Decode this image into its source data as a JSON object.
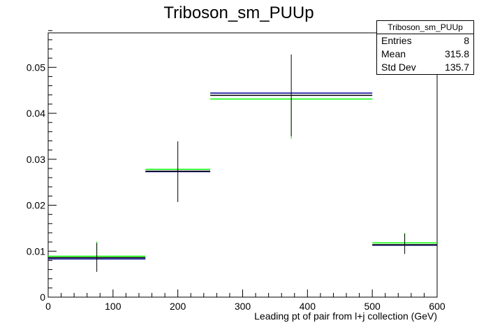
{
  "chart_data": {
    "type": "histogram",
    "title": "Triboson_sm_PUUp",
    "xlabel": "Leading pt of pair from l+j collection (GeV)",
    "ylabel": "",
    "xlim": [
      0,
      600
    ],
    "ylim": [
      0,
      0.0575
    ],
    "x_ticks": [
      0,
      100,
      200,
      300,
      400,
      500,
      600
    ],
    "x_tick_labels": [
      "0",
      "100",
      "200",
      "300",
      "400",
      "500",
      "600"
    ],
    "y_ticks": [
      0,
      0.01,
      0.02,
      0.03,
      0.04,
      0.05
    ],
    "y_tick_labels": [
      "0",
      "0.01",
      "0.02",
      "0.03",
      "0.04",
      "0.05"
    ],
    "grid": false,
    "bins": [
      {
        "low": 0,
        "high": 150
      },
      {
        "low": 150,
        "high": 250
      },
      {
        "low": 250,
        "high": 500
      },
      {
        "low": 500,
        "high": 600
      }
    ],
    "series": [
      {
        "color": "#00ff00",
        "values": [
          0.0089,
          0.0278,
          0.0431,
          0.0118
        ]
      },
      {
        "color": "#000099",
        "values": [
          0.0083,
          0.0273,
          0.0444,
          0.0113
        ]
      },
      {
        "color": "#000000",
        "values": [
          0.0086,
          0.0274,
          0.0439,
          0.0114
        ],
        "error_points": [
          {
            "x": 75,
            "low": 0.0055,
            "high": 0.0118
          },
          {
            "x": 200,
            "low": 0.0207,
            "high": 0.0339
          },
          {
            "x": 375,
            "low": 0.035,
            "high": 0.0528
          },
          {
            "x": 550,
            "low": 0.0094,
            "high": 0.0138
          }
        ]
      }
    ],
    "green_error_points": [
      {
        "x": 75,
        "low": 0.0085,
        "high": 0.0121
      },
      {
        "x": 375,
        "low": 0.0344,
        "high": 0.044
      },
      {
        "x": 550,
        "low": 0.011,
        "high": 0.014
      }
    ]
  },
  "stats_box": {
    "title": "Triboson_sm_PUUp",
    "rows": [
      {
        "label": "Entries",
        "value": "8"
      },
      {
        "label": "Mean",
        "value": "315.8"
      },
      {
        "label": "Std Dev",
        "value": "135.7"
      }
    ]
  }
}
